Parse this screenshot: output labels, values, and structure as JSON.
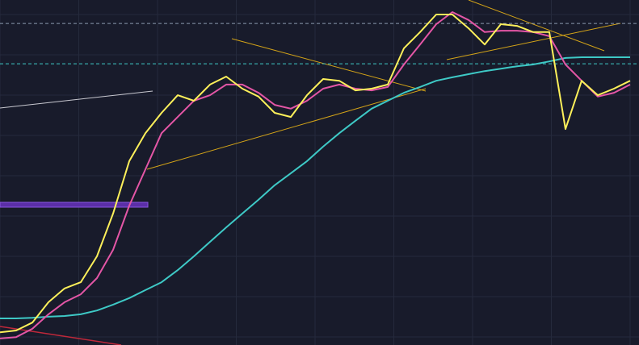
{
  "chart_data": {
    "type": "line",
    "x": [
      0,
      1,
      2,
      3,
      4,
      5,
      6,
      7,
      8,
      9,
      10,
      11,
      12,
      13,
      14,
      15,
      16,
      17,
      18,
      19,
      20,
      21,
      22,
      23,
      24,
      25,
      26,
      27,
      28,
      29,
      30,
      31,
      32,
      33,
      34,
      35,
      36,
      37,
      38,
      39
    ],
    "xlim": [
      0,
      39
    ],
    "ylim": [
      0,
      100
    ],
    "series": [
      {
        "color": "#3ec9c6",
        "values": [
          7.7,
          7.7,
          7.9,
          8.2,
          8.4,
          8.9,
          10,
          11.7,
          13.6,
          15.9,
          18.2,
          21.7,
          25.7,
          29.9,
          34.1,
          38.1,
          42.1,
          46.3,
          49.8,
          53.3,
          57.5,
          61.4,
          65,
          68.5,
          70.8,
          73.1,
          74.8,
          76.6,
          77.6,
          78.5,
          79.4,
          80.1,
          80.8,
          81.3,
          82.2,
          83.2,
          83.4,
          83.4,
          83.4,
          83.4
        ]
      },
      {
        "color": "#e456a6",
        "values": [
          1.9,
          2.3,
          4.7,
          8.9,
          12.4,
          14.7,
          19.4,
          27.6,
          40.4,
          50.9,
          61.4,
          66.1,
          70.8,
          72.4,
          75.5,
          75.5,
          73.1,
          69.6,
          68.5,
          70.8,
          74.3,
          75.5,
          74.3,
          73.8,
          74.8,
          81.3,
          87.1,
          93,
          96.5,
          94.2,
          90.7,
          91.1,
          91.1,
          90.7,
          89.5,
          81.3,
          76.6,
          72,
          73.1,
          75.5
        ]
      },
      {
        "color": "#fdf05a",
        "values": [
          3.7,
          4.2,
          6.5,
          12.4,
          16.4,
          18.2,
          25.7,
          38.1,
          53.3,
          61.4,
          67.3,
          72.4,
          70.8,
          75.5,
          77.8,
          74.3,
          72,
          67.3,
          66.1,
          72.4,
          77.1,
          76.6,
          73.8,
          74.3,
          75.5,
          86,
          90.7,
          95.8,
          95.8,
          91.8,
          87.1,
          93,
          92.5,
          90.7,
          90.7,
          62.6,
          76.6,
          72.4,
          74.3,
          76.6
        ]
      }
    ],
    "levels": [
      {
        "value": 93.2,
        "color": "#8a9bb0"
      },
      {
        "value": 81.5,
        "color": "#3ec9c6"
      }
    ]
  }
}
